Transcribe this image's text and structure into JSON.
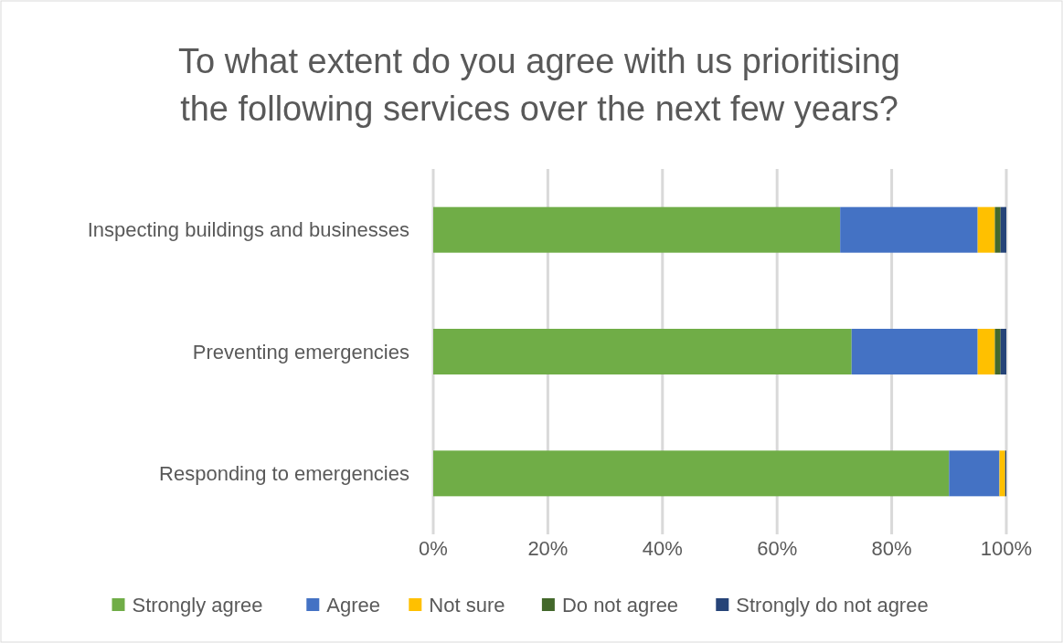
{
  "chart_data": {
    "type": "bar",
    "orientation": "horizontal",
    "stacked": true,
    "title": "To what extent do you agree with us prioritising the following services over the next few years?",
    "categories": [
      "Inspecting buildings and businesses",
      "Preventing emergencies",
      "Responding to emergencies"
    ],
    "series": [
      {
        "name": "Strongly agree",
        "color": "#70ad47",
        "values": [
          71,
          73,
          90
        ]
      },
      {
        "name": "Agree",
        "color": "#4472c4",
        "values": [
          24,
          22,
          8.8
        ]
      },
      {
        "name": "Not sure",
        "color": "#ffc000",
        "values": [
          3,
          3,
          1
        ]
      },
      {
        "name": "Do not agree",
        "color": "#43682b",
        "values": [
          1,
          1,
          0
        ]
      },
      {
        "name": "Strongly do not agree",
        "color": "#264478",
        "values": [
          1,
          1,
          0.2
        ]
      }
    ],
    "xlim": [
      0,
      100
    ],
    "xticks": [
      {
        "value": 0,
        "label": "0%"
      },
      {
        "value": 20,
        "label": "20%"
      },
      {
        "value": 40,
        "label": "40%"
      },
      {
        "value": 60,
        "label": "60%"
      },
      {
        "value": 80,
        "label": "80%"
      },
      {
        "value": 100,
        "label": "100%"
      }
    ],
    "grid": "x",
    "legend": "bottom"
  }
}
